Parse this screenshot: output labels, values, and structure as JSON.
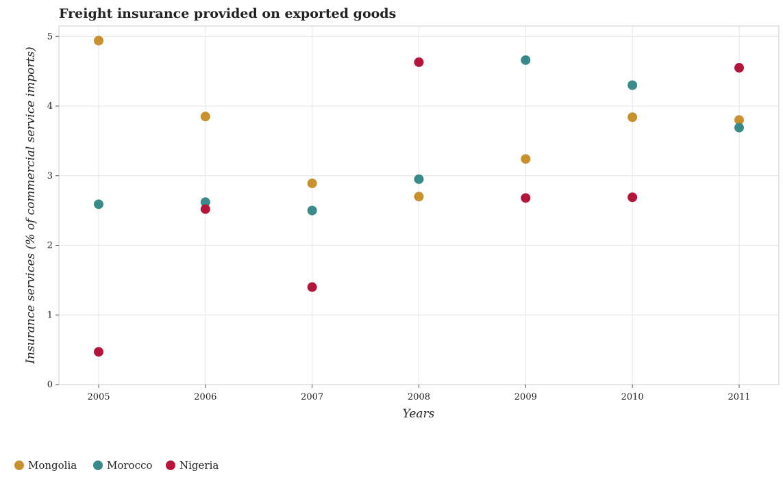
{
  "chart_data": {
    "type": "scatter",
    "title": "Freight insurance provided on exported goods",
    "xlabel": "Years",
    "ylabel": "Insurance services (% of commercial service imports)",
    "categories": [
      "2005",
      "2006",
      "2007",
      "2008",
      "2009",
      "2010",
      "2011"
    ],
    "ylim": [
      0,
      5.15
    ],
    "yticks": [
      0,
      1,
      2,
      3,
      4,
      5
    ],
    "grid": true,
    "legend_position": "bottom-left",
    "series": [
      {
        "name": "Mongolia",
        "color": "#c8912d",
        "values": [
          4.94,
          3.85,
          2.89,
          2.7,
          3.24,
          3.84,
          3.8
        ]
      },
      {
        "name": "Morocco",
        "color": "#3a8a8a",
        "values": [
          2.59,
          2.62,
          2.5,
          2.95,
          4.66,
          4.3,
          3.69
        ]
      },
      {
        "name": "Nigeria",
        "color": "#b5153a",
        "values": [
          0.47,
          2.52,
          1.4,
          4.63,
          2.68,
          2.69,
          4.55
        ]
      }
    ]
  }
}
